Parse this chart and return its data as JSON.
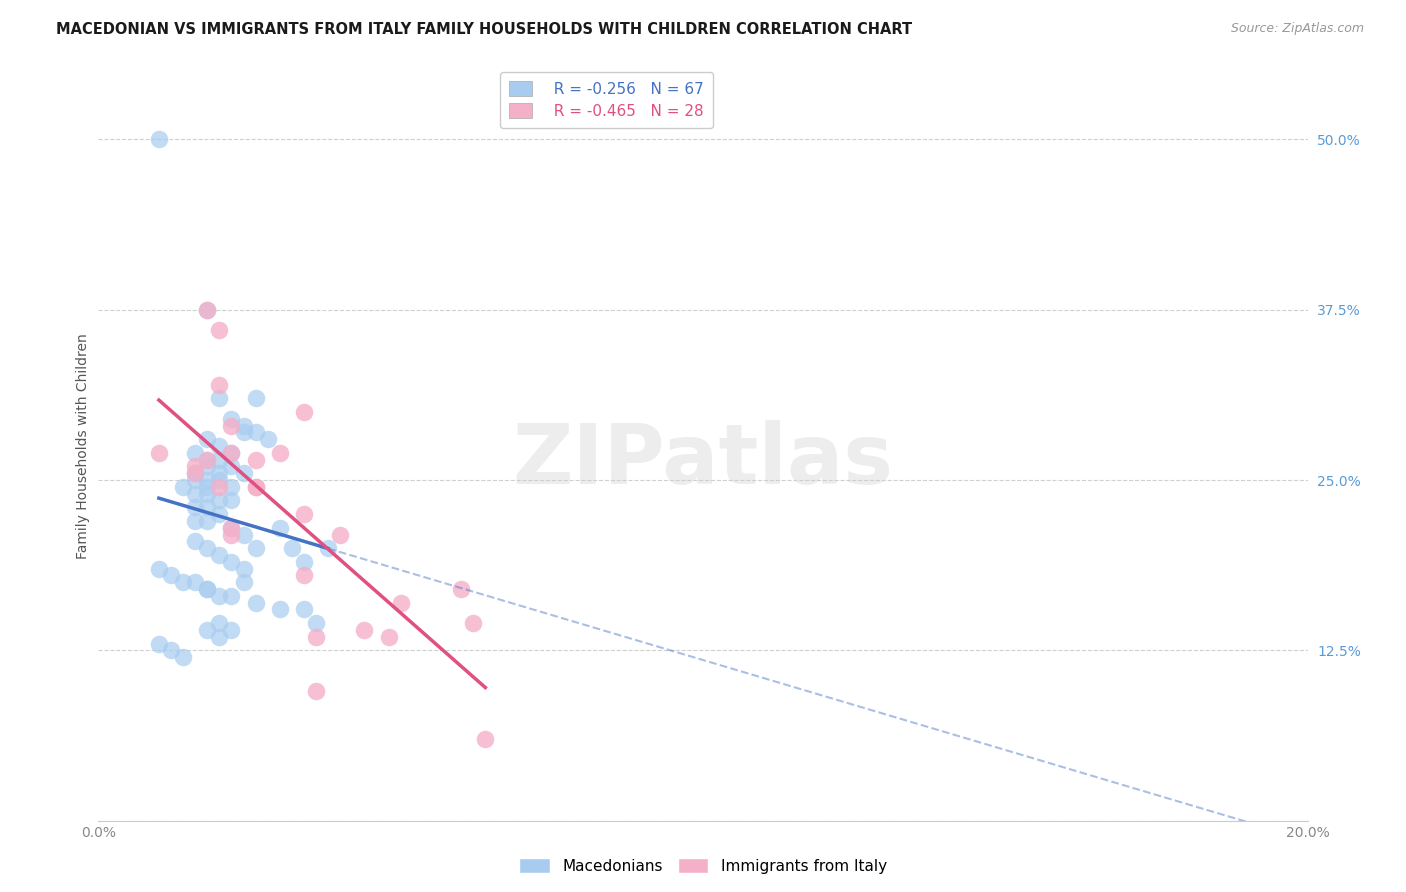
{
  "title": "MACEDONIAN VS IMMIGRANTS FROM ITALY FAMILY HOUSEHOLDS WITH CHILDREN CORRELATION CHART",
  "source": "Source: ZipAtlas.com",
  "ylabel": "Family Households with Children",
  "xlim": [
    0.0,
    0.2
  ],
  "ylim": [
    0.0,
    0.55
  ],
  "y_ticks": [
    0.0,
    0.125,
    0.25,
    0.375,
    0.5
  ],
  "y_tick_labels": [
    "",
    "12.5%",
    "25.0%",
    "37.5%",
    "50.0%"
  ],
  "x_ticks": [
    0.0,
    0.04,
    0.08,
    0.12,
    0.16,
    0.2
  ],
  "x_tick_labels": [
    "0.0%",
    "",
    "",
    "",
    "",
    "20.0%"
  ],
  "macedonian_color": "#A8CCF0",
  "italy_color": "#F4B0C8",
  "macedonian_label": "Macedonians",
  "italy_label": "Immigrants from Italy",
  "R_macedonian": -0.256,
  "N_macedonian": 67,
  "R_italy": -0.465,
  "N_italy": 28,
  "background_color": "#ffffff",
  "grid_color": "#d0d0d0",
  "macedonian_trend_color": "#4472C4",
  "italy_trend_color": "#E05080",
  "watermark_text": "ZIPatlas",
  "macedonian_dots_x": [
    0.01,
    0.018,
    0.02,
    0.022,
    0.024,
    0.026,
    0.028,
    0.018,
    0.02,
    0.022,
    0.016,
    0.018,
    0.02,
    0.022,
    0.018,
    0.02,
    0.024,
    0.016,
    0.018,
    0.02,
    0.022,
    0.014,
    0.016,
    0.018,
    0.02,
    0.022,
    0.024,
    0.026,
    0.016,
    0.018,
    0.02,
    0.016,
    0.018,
    0.022,
    0.024,
    0.026,
    0.03,
    0.016,
    0.018,
    0.02,
    0.022,
    0.024,
    0.01,
    0.012,
    0.014,
    0.016,
    0.018,
    0.02,
    0.022,
    0.026,
    0.03,
    0.034,
    0.016,
    0.018,
    0.034,
    0.018,
    0.02,
    0.01,
    0.012,
    0.014,
    0.032,
    0.036,
    0.038,
    0.018,
    0.02,
    0.022,
    0.024
  ],
  "macedonian_dots_y": [
    0.5,
    0.375,
    0.31,
    0.295,
    0.29,
    0.285,
    0.28,
    0.28,
    0.275,
    0.27,
    0.27,
    0.265,
    0.265,
    0.26,
    0.26,
    0.255,
    0.255,
    0.255,
    0.25,
    0.25,
    0.245,
    0.245,
    0.24,
    0.24,
    0.235,
    0.235,
    0.285,
    0.31,
    0.23,
    0.23,
    0.225,
    0.22,
    0.22,
    0.215,
    0.21,
    0.2,
    0.215,
    0.205,
    0.2,
    0.195,
    0.19,
    0.185,
    0.185,
    0.18,
    0.175,
    0.175,
    0.17,
    0.165,
    0.165,
    0.16,
    0.155,
    0.155,
    0.25,
    0.245,
    0.19,
    0.14,
    0.135,
    0.13,
    0.125,
    0.12,
    0.2,
    0.145,
    0.2,
    0.17,
    0.145,
    0.14,
    0.175
  ],
  "italy_dots_x": [
    0.01,
    0.016,
    0.018,
    0.02,
    0.022,
    0.026,
    0.016,
    0.018,
    0.02,
    0.022,
    0.026,
    0.03,
    0.034,
    0.02,
    0.022,
    0.026,
    0.034,
    0.04,
    0.022,
    0.036,
    0.044,
    0.048,
    0.05,
    0.034,
    0.036,
    0.06,
    0.062,
    0.064
  ],
  "italy_dots_y": [
    0.27,
    0.26,
    0.375,
    0.36,
    0.29,
    0.265,
    0.255,
    0.265,
    0.32,
    0.27,
    0.245,
    0.27,
    0.3,
    0.245,
    0.215,
    0.245,
    0.225,
    0.21,
    0.21,
    0.135,
    0.14,
    0.135,
    0.16,
    0.18,
    0.095,
    0.17,
    0.145,
    0.06
  ]
}
